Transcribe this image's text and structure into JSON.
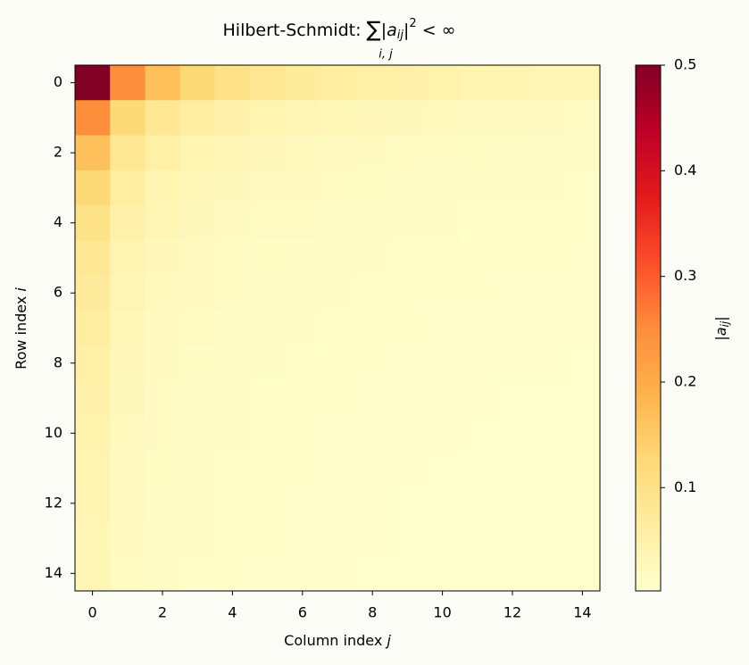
{
  "chart_data": {
    "type": "heatmap",
    "title_parts": [
      "Hilbert-Schmidt: ",
      "∑",
      "|a",
      "ij",
      "|",
      "2",
      " < ∞"
    ],
    "title_sum_index": "i, j",
    "x_label": [
      "Column index ",
      "j"
    ],
    "y_label": [
      "Row index ",
      "i"
    ],
    "colorbar_label": [
      "|a",
      "ij",
      "|"
    ],
    "xlim": [
      -0.5,
      14.5
    ],
    "xticks": [
      0,
      2,
      4,
      6,
      8,
      10,
      12,
      14
    ],
    "ylim": [
      14.5,
      -0.5
    ],
    "yticks": [
      0,
      2,
      4,
      6,
      8,
      10,
      12,
      14
    ],
    "clim": [
      0.0022,
      0.5
    ],
    "cticks": [
      0.1,
      0.2,
      0.3,
      0.4,
      0.5
    ],
    "colormap": [
      "#ffffcc",
      "#ffeda0",
      "#fed976",
      "#feb24c",
      "#fd8d3c",
      "#fc4e2a",
      "#e31a1c",
      "#bd0026",
      "#800026"
    ],
    "values": [
      [
        0.5,
        0.25,
        0.1667,
        0.125,
        0.1,
        0.0833,
        0.0714,
        0.0625,
        0.0556,
        0.05,
        0.0455,
        0.0417,
        0.0385,
        0.0357,
        0.0333
      ],
      [
        0.25,
        0.125,
        0.0833,
        0.0625,
        0.05,
        0.0417,
        0.0357,
        0.0313,
        0.0278,
        0.025,
        0.0227,
        0.0208,
        0.0192,
        0.0179,
        0.0167
      ],
      [
        0.1667,
        0.0833,
        0.0556,
        0.0417,
        0.0333,
        0.0278,
        0.0238,
        0.0208,
        0.0185,
        0.0167,
        0.0152,
        0.0139,
        0.0128,
        0.0119,
        0.0111
      ],
      [
        0.125,
        0.0625,
        0.0417,
        0.0313,
        0.025,
        0.0208,
        0.0179,
        0.0156,
        0.0139,
        0.0125,
        0.0114,
        0.0104,
        0.0096,
        0.0089,
        0.0083
      ],
      [
        0.1,
        0.05,
        0.0333,
        0.025,
        0.02,
        0.0167,
        0.0143,
        0.0125,
        0.0111,
        0.01,
        0.0091,
        0.0083,
        0.0077,
        0.0071,
        0.0067
      ],
      [
        0.0833,
        0.0417,
        0.0278,
        0.0208,
        0.0167,
        0.0139,
        0.0119,
        0.0104,
        0.0093,
        0.0083,
        0.0076,
        0.0069,
        0.0064,
        0.006,
        0.0056
      ],
      [
        0.0714,
        0.0357,
        0.0238,
        0.0179,
        0.0143,
        0.0119,
        0.0102,
        0.0089,
        0.0079,
        0.0071,
        0.0065,
        0.006,
        0.0055,
        0.0051,
        0.0048
      ],
      [
        0.0625,
        0.0313,
        0.0208,
        0.0156,
        0.0125,
        0.0104,
        0.0089,
        0.0078,
        0.0069,
        0.0063,
        0.0057,
        0.0052,
        0.0048,
        0.0045,
        0.0042
      ],
      [
        0.0556,
        0.0278,
        0.0185,
        0.0139,
        0.0111,
        0.0093,
        0.0079,
        0.0069,
        0.0062,
        0.0056,
        0.0051,
        0.0046,
        0.0043,
        0.004,
        0.0037
      ],
      [
        0.05,
        0.025,
        0.0167,
        0.0125,
        0.01,
        0.0083,
        0.0071,
        0.0063,
        0.0056,
        0.005,
        0.0045,
        0.0042,
        0.0038,
        0.0036,
        0.0033
      ],
      [
        0.0455,
        0.0227,
        0.0152,
        0.0114,
        0.0091,
        0.0076,
        0.0065,
        0.0057,
        0.0051,
        0.0045,
        0.0041,
        0.0038,
        0.0035,
        0.0032,
        0.003
      ],
      [
        0.0417,
        0.0208,
        0.0139,
        0.0104,
        0.0083,
        0.0069,
        0.006,
        0.0052,
        0.0046,
        0.0042,
        0.0038,
        0.0035,
        0.0032,
        0.003,
        0.0028
      ],
      [
        0.0385,
        0.0192,
        0.0128,
        0.0096,
        0.0077,
        0.0064,
        0.0055,
        0.0048,
        0.0043,
        0.0038,
        0.0035,
        0.0032,
        0.003,
        0.0027,
        0.0026
      ],
      [
        0.0357,
        0.0179,
        0.0119,
        0.0089,
        0.0071,
        0.006,
        0.0051,
        0.0045,
        0.004,
        0.0036,
        0.0032,
        0.003,
        0.0027,
        0.0026,
        0.0024
      ],
      [
        0.0333,
        0.0167,
        0.0111,
        0.0083,
        0.0067,
        0.0056,
        0.0048,
        0.0042,
        0.0037,
        0.0033,
        0.003,
        0.0028,
        0.0026,
        0.0024,
        0.0022
      ]
    ]
  }
}
